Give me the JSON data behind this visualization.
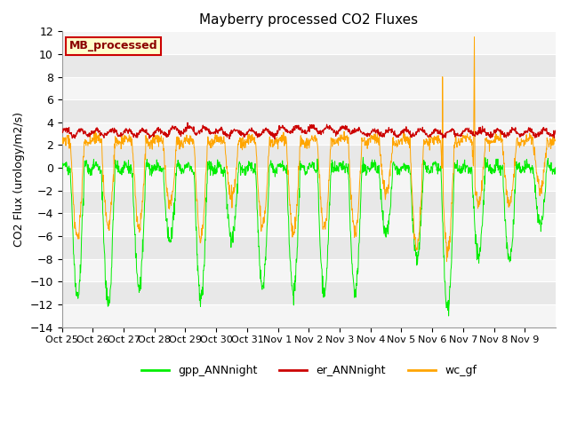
{
  "title": "Mayberry processed CO2 Fluxes",
  "ylabel": "CO2 Flux (urology/m2/s)",
  "xlabel": "",
  "ylim": [
    -14,
    12
  ],
  "yticks": [
    -14,
    -12,
    -10,
    -8,
    -6,
    -4,
    -2,
    0,
    2,
    4,
    6,
    8,
    10,
    12
  ],
  "xtick_labels": [
    "Oct 25",
    "Oct 26",
    "Oct 27",
    "Oct 28",
    "Oct 29",
    "Oct 30",
    "Oct 31",
    "Nov 1",
    "Nov 2",
    "Nov 3",
    "Nov 4",
    "Nov 5",
    "Nov 6",
    "Nov 7",
    "Nov 8",
    "Nov 9"
  ],
  "mb_label": "MB_processed",
  "mb_label_color": "#8B0000",
  "mb_facecolor": "#FFFFCC",
  "mb_edgecolor": "#CC0000",
  "gpp_color": "#00EE00",
  "er_color": "#CC0000",
  "wc_color": "#FFA500",
  "gpp_label": "gpp_ANNnight",
  "er_label": "er_ANNnight",
  "wc_label": "wc_gf",
  "plot_bg": "#E8E8E8",
  "band_color": "#F5F5F5",
  "n_days": 16,
  "pts_per_day": 96
}
